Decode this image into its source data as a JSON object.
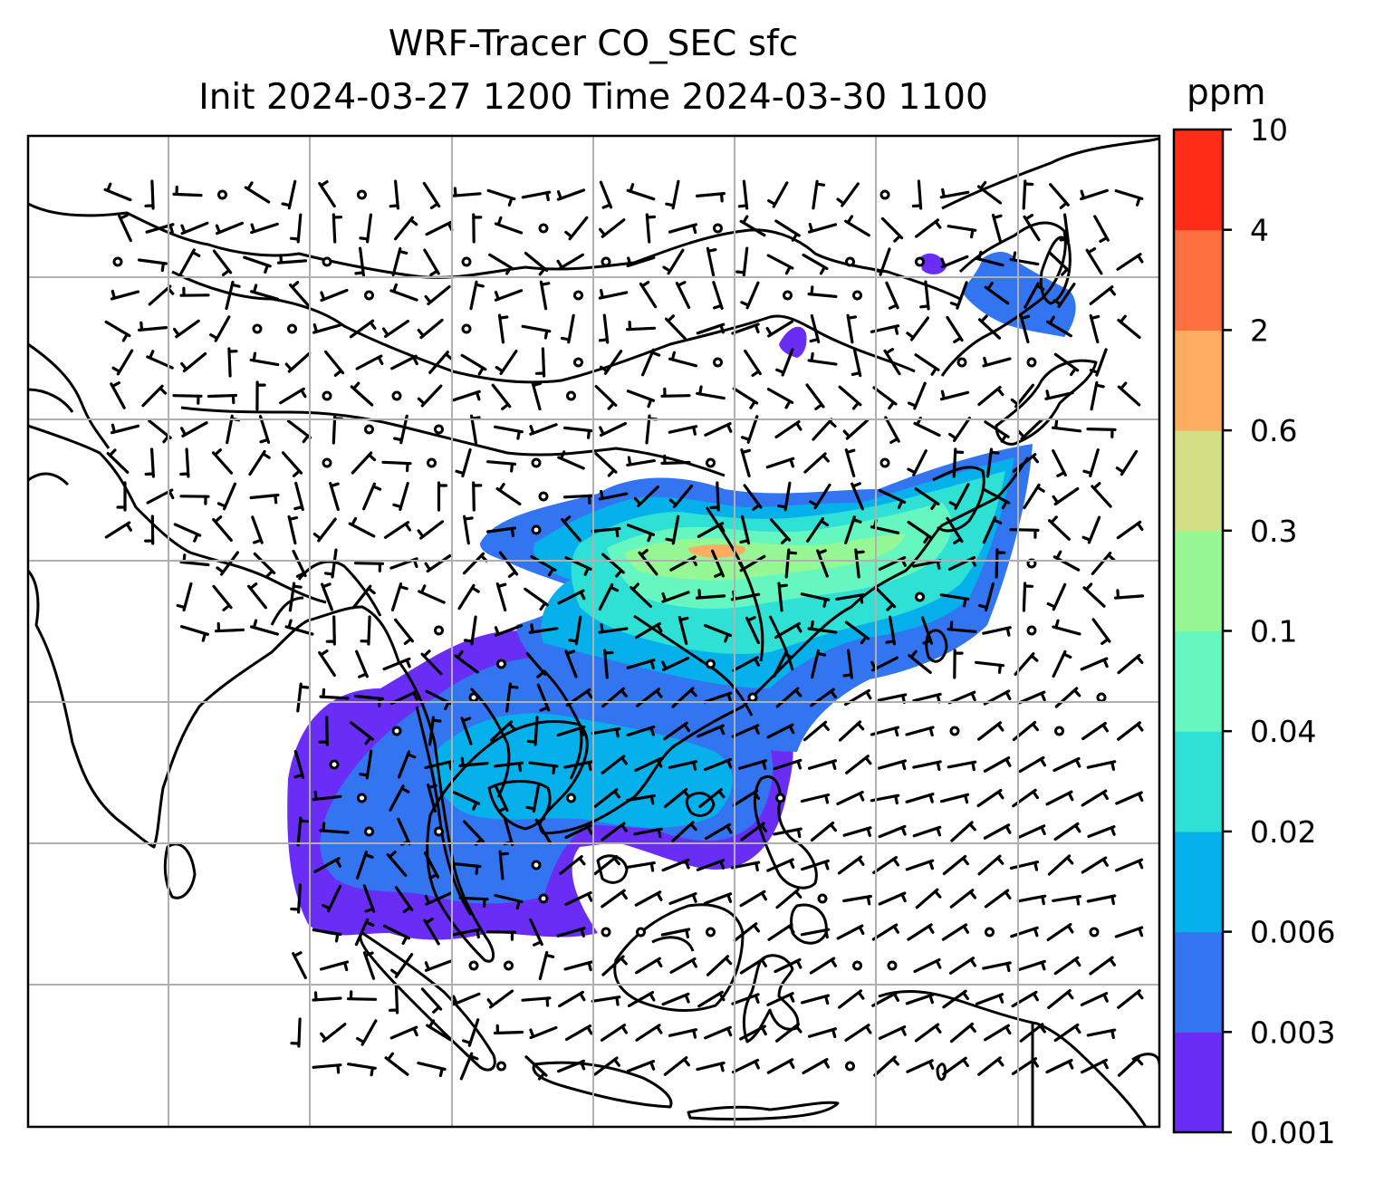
{
  "title_line1": "WRF-Tracer CO_SEC sfc",
  "title_line2": "Init 2024-03-27 1200 Time 2024-03-30 1100",
  "colorbar": {
    "unit": "ppm",
    "levels": [
      "0.001",
      "0.003",
      "0.006",
      "0.02",
      "0.04",
      "0.1",
      "0.3",
      "0.6",
      "2",
      "4",
      "10"
    ],
    "colors": [
      "#6a2df5",
      "#3374f0",
      "#06b0ea",
      "#2fe0d4",
      "#66f7c0",
      "#96f795",
      "#d2df84",
      "#fdad62",
      "#ff7040",
      "#ff2d18"
    ]
  },
  "map": {
    "gridlines": true,
    "field": "CO_SEC surface tracer concentration with wind barbs",
    "coastline_color": "#000000",
    "grid_color": "#b0b0b0"
  }
}
